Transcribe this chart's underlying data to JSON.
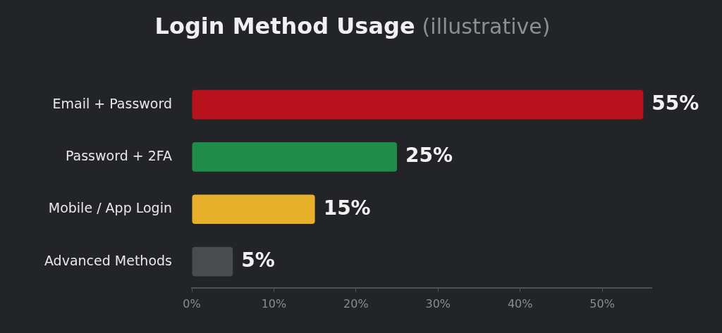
{
  "chart_data": {
    "type": "bar",
    "orientation": "horizontal",
    "title": "Login Method Usage",
    "subtitle": "(illustrative)",
    "categories": [
      "Email + Password",
      "Password + 2FA",
      "Mobile / App Login",
      "Advanced Methods"
    ],
    "values": [
      55,
      25,
      15,
      5
    ],
    "colors": [
      "#b8121c",
      "#1f8c4a",
      "#e6b02a",
      "#4a4b4f"
    ],
    "xlim": [
      0,
      56
    ],
    "xticks": [
      {
        "value": 0,
        "label": "0%"
      },
      {
        "value": 10,
        "label": "10%"
      },
      {
        "value": 20,
        "label": "20%"
      },
      {
        "value": 30,
        "label": "30%"
      },
      {
        "value": 40,
        "label": "40%"
      },
      {
        "value": 50,
        "label": "50%"
      }
    ],
    "value_labels": [
      "55%",
      "25%",
      "15%",
      "5%"
    ],
    "grid": false,
    "legend": false
  }
}
